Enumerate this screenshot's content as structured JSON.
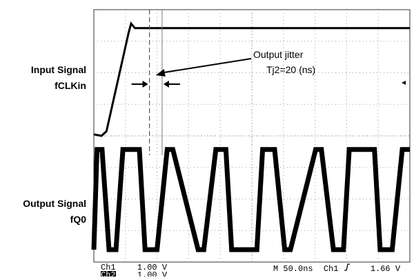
{
  "labels": {
    "input_signal_line1": "Input Signal",
    "input_signal_line2": "fCLKin",
    "output_signal_line1": "Output Signal",
    "output_signal_line2": "fQ0"
  },
  "annotation": {
    "line1": "Output jitter",
    "line2": "Tj2=20 (ns)"
  },
  "status_bar": {
    "ch1_label": "Ch1",
    "ch1_scale": "1.00 V",
    "ch2_label": "Ch2",
    "ch2_scale": "1.00 V",
    "timebase": "M 50.0ns",
    "trigger_source": "Ch1",
    "trigger_slope_icon": "rising-edge-icon",
    "trigger_level": "1.66 V"
  },
  "chart_data": {
    "type": "line",
    "title": "",
    "xlabel": "",
    "ylabel": "",
    "grid": true,
    "time_per_division_ns": 50,
    "volts_per_division": 1.0,
    "horizontal_divisions": 10,
    "vertical_divisions": 8,
    "x_unit": "ns",
    "xlim": [
      0,
      500
    ],
    "series": [
      {
        "name": "Input Signal fCLKin",
        "x": [
          0,
          12,
          20,
          55,
          59,
          65,
          500
        ],
        "y": [
          0.05,
          0.0,
          0.15,
          3.4,
          3.7,
          3.55,
          3.55
        ]
      },
      {
        "name": "Output Signal fQ0",
        "x": [
          0,
          5,
          13,
          24,
          35,
          46,
          72,
          81,
          100,
          116,
          125,
          165,
          174,
          193,
          209,
          218,
          258,
          267,
          286,
          302,
          311,
          351,
          360,
          379,
          395,
          404,
          444,
          453,
          472,
          488,
          497,
          500
        ],
        "y": [
          0,
          3.3,
          3.3,
          0,
          0,
          3.3,
          3.3,
          0,
          0,
          3.3,
          3.3,
          0,
          0,
          3.3,
          3.3,
          0,
          0,
          3.3,
          3.3,
          0,
          0,
          3.3,
          3.3,
          0,
          0,
          3.3,
          3.3,
          0,
          0,
          3.3,
          3.3,
          3.3
        ]
      }
    ],
    "markers": {
      "jitter_start_ns": 88,
      "jitter_end_ns": 108
    }
  },
  "colors": {
    "trace": "#000000",
    "grid": "#9a9a9a",
    "frame": "#333333",
    "background": "#ffffff"
  }
}
